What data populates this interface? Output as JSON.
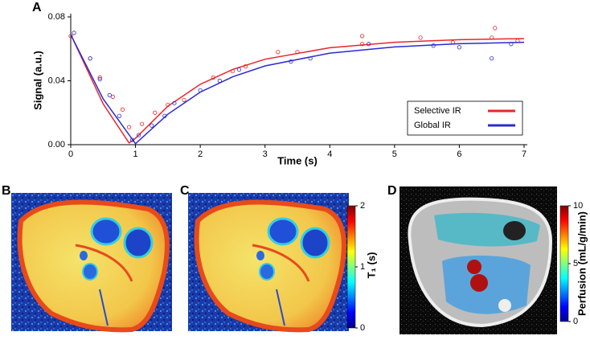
{
  "chart_data": {
    "type": "line",
    "xlabel": "Time (s)",
    "ylabel": "Signal (a.u.)",
    "xlim": [
      0,
      7
    ],
    "xticks": [
      0,
      1,
      2,
      3,
      4,
      5,
      6,
      7
    ],
    "ylim": [
      0,
      0.08
    ],
    "yticks": [
      {
        "value": 0,
        "label": "0.00"
      },
      {
        "value": 0.04,
        "label": "0.04"
      },
      {
        "value": 0.08,
        "label": "0.08"
      }
    ],
    "grid": false,
    "legend": "lower right",
    "series": [
      {
        "name": "Selective IR",
        "color": "#e8262a",
        "x": [
          0,
          0.5,
          0.9,
          1.0,
          1.5,
          2,
          2.5,
          3,
          4,
          5,
          6,
          7
        ],
        "values": [
          0.069,
          0.0256,
          0.0011,
          0.004,
          0.0241,
          0.0378,
          0.0471,
          0.0535,
          0.0607,
          0.0641,
          0.0657,
          0.0664
        ],
        "points": {
          "x": [
            0,
            0.3,
            0.45,
            0.65,
            0.8,
            0.9,
            1.1,
            1.3,
            1.5,
            1.75,
            2.2,
            2.5,
            2.7,
            3.2,
            3.5,
            4.5,
            4.5,
            5.4,
            5.9,
            6.5,
            6.55,
            6.9
          ],
          "values": [
            0.068,
            0.054,
            0.042,
            0.03,
            0.022,
            0.011,
            0.013,
            0.02,
            0.025,
            0.028,
            0.042,
            0.046,
            0.049,
            0.058,
            0.058,
            0.068,
            0.063,
            0.067,
            0.064,
            0.067,
            0.073,
            0.065
          ]
        }
      },
      {
        "name": "Global IR",
        "color": "#2a2ad0",
        "x": [
          0,
          0.5,
          1.0,
          1.5,
          2,
          2.5,
          3,
          4,
          5,
          6,
          7
        ],
        "values": [
          0.0689,
          0.0287,
          0.0006,
          0.0191,
          0.0329,
          0.0425,
          0.0493,
          0.0573,
          0.0612,
          0.0632,
          0.0641
        ],
        "points": {
          "x": [
            0.05,
            0.3,
            0.45,
            0.6,
            0.75,
            0.95,
            1.05,
            1.25,
            1.45,
            1.6,
            2.0,
            2.3,
            2.6,
            3.4,
            3.7,
            4.6,
            5.6,
            6.0,
            6.5,
            6.8
          ],
          "values": [
            0.07,
            0.054,
            0.041,
            0.031,
            0.018,
            0.003,
            0.006,
            0.012,
            0.018,
            0.026,
            0.034,
            0.04,
            0.047,
            0.052,
            0.054,
            0.063,
            0.062,
            0.061,
            0.054,
            0.063
          ]
        }
      }
    ]
  },
  "figure": {
    "panel_labels": [
      "A",
      "B",
      "C",
      "D"
    ],
    "colorbars": [
      {
        "label": "T₁ (s)",
        "lim": [
          0,
          2
        ],
        "ticks": [
          0,
          1,
          2
        ]
      },
      {
        "label": "Perfusion (mL/g/min)",
        "lim": [
          0,
          10
        ],
        "ticks": [
          0,
          5,
          10
        ]
      }
    ]
  }
}
